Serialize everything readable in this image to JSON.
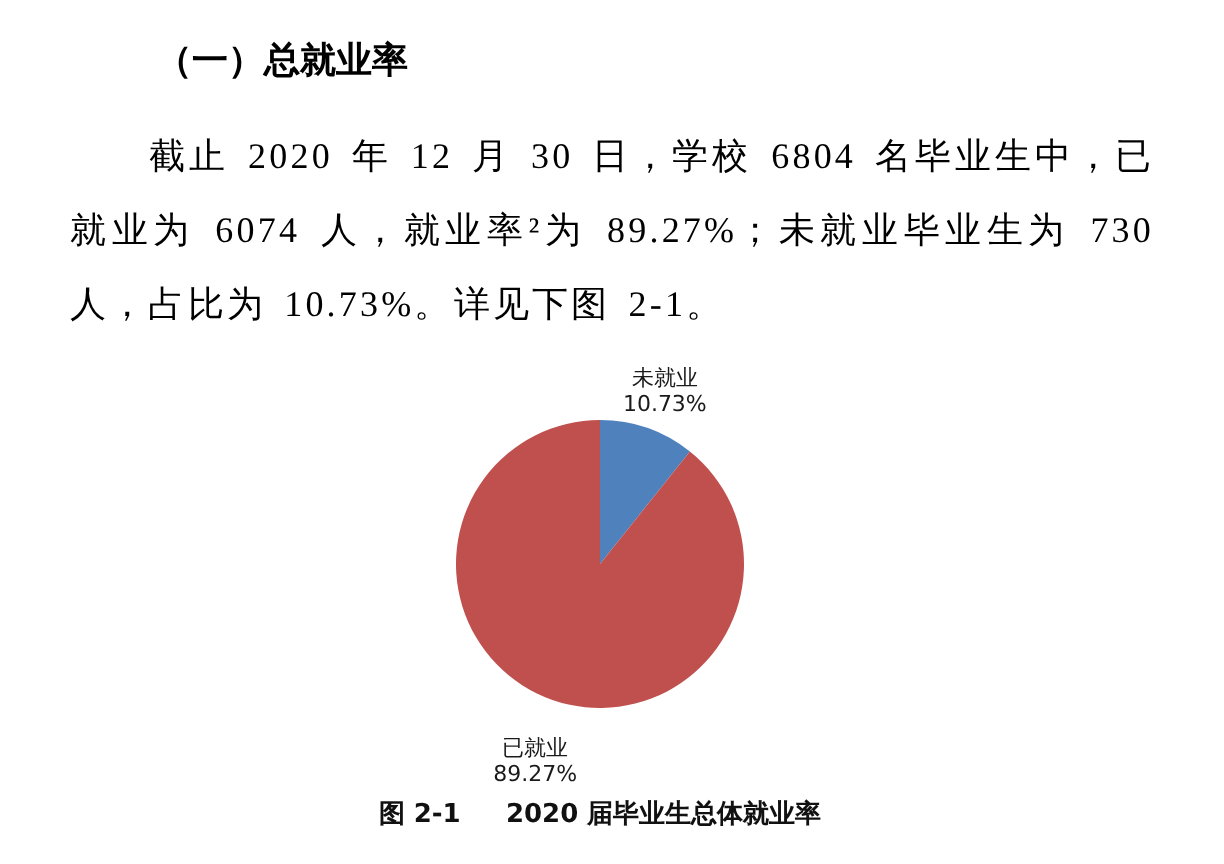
{
  "chart_data": {
    "type": "pie",
    "title": "（一）总就业率",
    "subtitle": "截止 2020 年 12 月 30 日，学校 6804 名毕业生中，已就业为 6074 人，就业率²为 89.27%；未就业毕业生为 730 人，占比为 10.73%。详见下图 2-1。",
    "categories": [
      "未就业",
      "已就业"
    ],
    "values": [
      10.73,
      89.27
    ],
    "colors": [
      "#4f81bd",
      "#c0504d"
    ],
    "value_labels": [
      "10.73%",
      "89.27%"
    ],
    "annotations": [
      "图 2-1     2020 届毕业生总体就业率"
    ]
  }
}
